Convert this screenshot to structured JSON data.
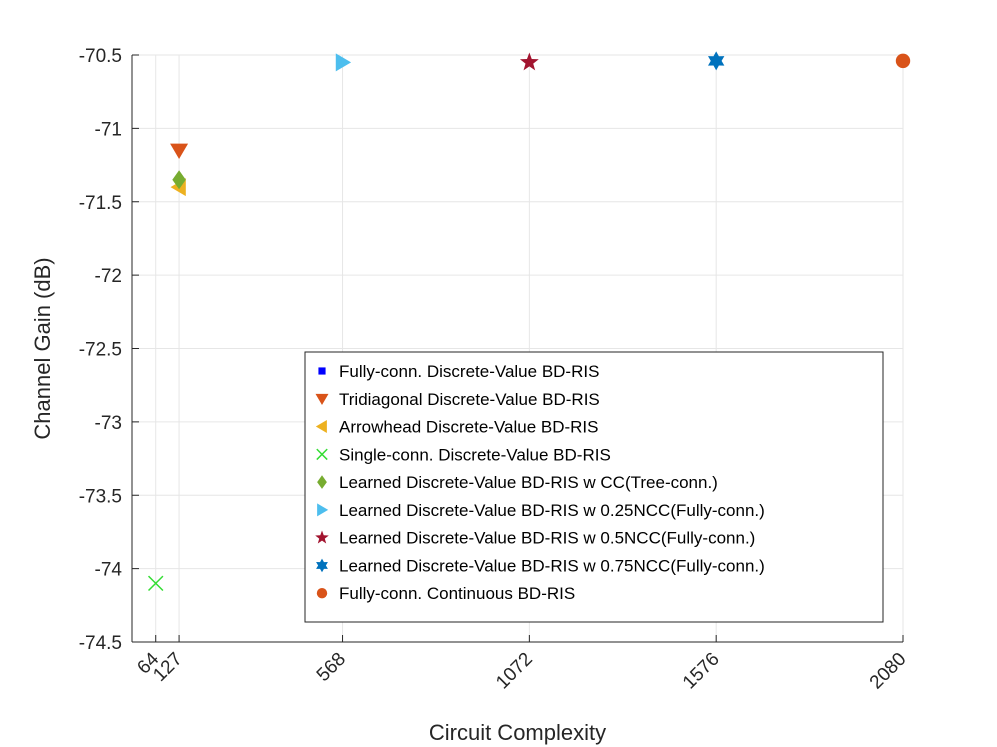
{
  "chart_data": {
    "type": "scatter",
    "title": "",
    "xlabel": "Circuit Complexity",
    "ylabel": "Channel Gain (dB)",
    "xlim": [
      0,
      2080
    ],
    "ylim": [
      -74.5,
      -70.5
    ],
    "xticks": [
      64,
      127,
      568,
      1072,
      1576,
      2080
    ],
    "xtick_labels": [
      "64",
      "127",
      "568",
      "1072",
      "1576",
      "2080"
    ],
    "yticks": [
      -74.5,
      -74,
      -73.5,
      -73,
      -72.5,
      -72,
      -71.5,
      -71,
      -70.5
    ],
    "ytick_labels": [
      "-74.5",
      "-74",
      "-73.5",
      "-73",
      "-72.5",
      "-72",
      "-71.5",
      "-71",
      "-70.5"
    ],
    "grid": true,
    "legend_position": "bottom-right",
    "series": [
      {
        "name": "Fully-conn. Discrete-Value BD-RIS",
        "marker": "square",
        "color": "#0000FF",
        "points": [
          [
            2080,
            -70.54
          ]
        ]
      },
      {
        "name": "Tridiagonal Discrete-Value BD-RIS",
        "marker": "triangle-down",
        "color": "#D95319",
        "points": [
          [
            127,
            -71.15
          ]
        ]
      },
      {
        "name": "Arrowhead Discrete-Value BD-RIS",
        "marker": "triangle-left",
        "color": "#EDB120",
        "points": [
          [
            127,
            -71.4
          ]
        ]
      },
      {
        "name": "Single-conn. Discrete-Value BD-RIS",
        "marker": "x",
        "color": "#33DD33",
        "points": [
          [
            64,
            -74.1
          ]
        ]
      },
      {
        "name": "Learned Discrete-Value BD-RIS w CC(Tree-conn.)",
        "marker": "diamond",
        "color": "#77AC30",
        "points": [
          [
            127,
            -71.35
          ]
        ]
      },
      {
        "name": "Learned Discrete-Value BD-RIS w 0.25NCC(Fully-conn.)",
        "marker": "triangle-right",
        "color": "#4DBEEE",
        "points": [
          [
            568,
            -70.55
          ]
        ]
      },
      {
        "name": "Learned Discrete-Value BD-RIS w 0.5NCC(Fully-conn.)",
        "marker": "pentagram",
        "color": "#A2142F",
        "points": [
          [
            1072,
            -70.55
          ]
        ]
      },
      {
        "name": "Learned Discrete-Value BD-RIS w 0.75NCC(Fully-conn.)",
        "marker": "hexagram",
        "color": "#0072BD",
        "points": [
          [
            1576,
            -70.54
          ]
        ]
      },
      {
        "name": "Fully-conn. Continuous BD-RIS",
        "marker": "circle",
        "color": "#D95319",
        "points": [
          [
            2080,
            -70.54
          ]
        ]
      }
    ]
  }
}
